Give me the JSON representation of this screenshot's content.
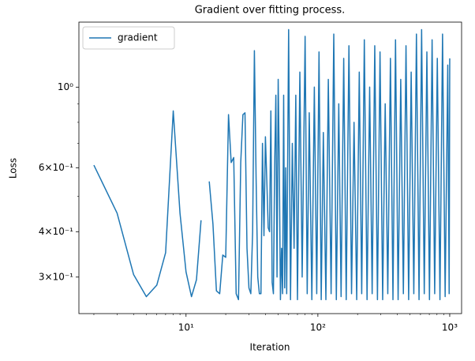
{
  "chart_data": {
    "type": "line",
    "title": "Gradient over fitting process.",
    "x_label": "Iteration",
    "y_label": "Loss",
    "xscale": "log",
    "yscale": "log",
    "legend": "upper left",
    "xlim": [
      1.54,
      1230
    ],
    "ylim": [
      0.238,
      1.51
    ],
    "xticks": [
      {
        "value": 10,
        "label": "10¹"
      },
      {
        "value": 100,
        "label": "10²"
      },
      {
        "value": 1000,
        "label": "10³"
      }
    ],
    "xminorticks": [
      2,
      3,
      4,
      5,
      6,
      7,
      8,
      9,
      20,
      30,
      40,
      50,
      60,
      70,
      80,
      90,
      200,
      300,
      400,
      500,
      600,
      700,
      800,
      900
    ],
    "yticks": [
      {
        "value": 0.3,
        "label": "3×10⁻¹"
      },
      {
        "value": 0.4,
        "label": "4×10⁻¹"
      },
      {
        "value": 0.6,
        "label": "6×10⁻¹"
      },
      {
        "value": 1,
        "label": "10⁰"
      }
    ],
    "yminorticks": [
      0.5,
      0.7,
      0.8,
      0.9
    ],
    "x": [
      2,
      3,
      4,
      5,
      6,
      7,
      8,
      9,
      10,
      11,
      12,
      13,
      14,
      15,
      16,
      17,
      18,
      19,
      20,
      21,
      22,
      23,
      24,
      25,
      26,
      27,
      28,
      29,
      30,
      31,
      32,
      33,
      34,
      35,
      36,
      37,
      38,
      39,
      40,
      41,
      42,
      43,
      44,
      45,
      46,
      47,
      48,
      49,
      50,
      51,
      52,
      53,
      54,
      55,
      56,
      57,
      58,
      60,
      62,
      64,
      66,
      68,
      70,
      73,
      76,
      80,
      83,
      86,
      90,
      94,
      98,
      102,
      106,
      110,
      115,
      120,
      126,
      132,
      138,
      144,
      150,
      157,
      164,
      172,
      180,
      188,
      197,
      206,
      215,
      225,
      236,
      247,
      258,
      270,
      283,
      296,
      310,
      324,
      339,
      355,
      371,
      388,
      406,
      425,
      445,
      466,
      488,
      510,
      534,
      559,
      585,
      612,
      641,
      671,
      702,
      735,
      769,
      805,
      843,
      882,
      923,
      966,
      990,
      1000
    ],
    "series": [
      {
        "name": "gradient",
        "color": "#1f77b4",
        "values": [
          0.61,
          0.45,
          0.305,
          0.265,
          0.285,
          0.35,
          0.86,
          0.45,
          0.31,
          0.265,
          0.295,
          0.43,
          null,
          0.55,
          0.42,
          0.275,
          0.27,
          0.345,
          0.34,
          0.84,
          0.62,
          0.64,
          0.27,
          0.26,
          0.62,
          0.84,
          0.85,
          0.36,
          0.28,
          0.27,
          0.4,
          1.26,
          0.56,
          0.3,
          0.27,
          0.27,
          0.7,
          0.39,
          0.73,
          0.55,
          0.41,
          0.4,
          0.86,
          0.29,
          0.27,
          0.61,
          0.95,
          0.3,
          1.05,
          0.6,
          0.26,
          0.36,
          0.27,
          0.95,
          0.28,
          0.6,
          0.27,
          1.44,
          0.26,
          0.7,
          0.36,
          0.95,
          0.26,
          1.1,
          0.3,
          1.38,
          0.27,
          0.85,
          0.26,
          1.0,
          0.27,
          1.25,
          0.26,
          0.75,
          0.26,
          1.05,
          0.27,
          1.4,
          0.26,
          0.9,
          0.265,
          1.2,
          0.26,
          1.3,
          0.27,
          0.8,
          0.26,
          1.1,
          0.27,
          1.35,
          0.26,
          1.0,
          0.27,
          1.3,
          0.26,
          1.25,
          0.26,
          0.9,
          0.27,
          1.2,
          0.26,
          1.35,
          0.26,
          1.05,
          0.27,
          1.3,
          0.26,
          1.1,
          0.27,
          1.4,
          0.26,
          1.44,
          0.27,
          1.25,
          0.26,
          1.35,
          0.27,
          1.2,
          0.26,
          1.4,
          0.265,
          1.15,
          0.27,
          1.2
        ]
      }
    ]
  }
}
